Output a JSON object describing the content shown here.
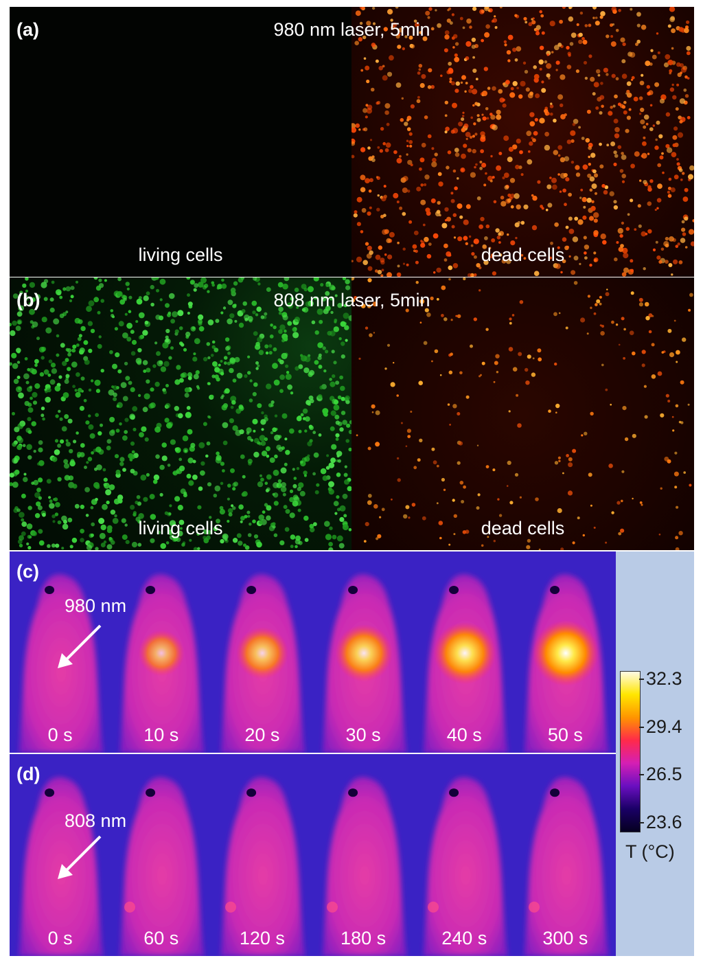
{
  "panel_a": {
    "label_open": "(",
    "label_letter": "a",
    "label_close": ")",
    "title": "980 nm laser, 5min",
    "left_caption": "living cells",
    "right_caption": "dead cells"
  },
  "panel_b": {
    "label_open": "(",
    "label_letter": "b",
    "label_close": ")",
    "title": "808 nm laser, 5min",
    "left_caption": "living cells",
    "right_caption": "dead cells"
  },
  "panel_c": {
    "label_open": "(",
    "label_letter": "c",
    "label_close": ")",
    "wavelength": "980 nm",
    "times": [
      "0 s",
      "10 s",
      "20 s",
      "30 s",
      "40 s",
      "50 s"
    ],
    "hotspot_intensity": [
      0,
      0.35,
      0.55,
      0.72,
      0.88,
      1.0
    ]
  },
  "panel_d": {
    "label_open": "(",
    "label_letter": "d",
    "label_close": ")",
    "wavelength": "808 nm",
    "times": [
      "0 s",
      "60 s",
      "120 s",
      "180 s",
      "240 s",
      "300 s"
    ]
  },
  "colorbar": {
    "ticks": [
      "32.3",
      "29.4",
      "26.5",
      "23.6"
    ],
    "unit_label": "T (°C)",
    "colors": [
      "#fffbe6",
      "#ffe600",
      "#ff9500",
      "#ff2a4a",
      "#d51fb4",
      "#6a0fc0",
      "#1a0066",
      "#050020"
    ]
  },
  "colors": {
    "thermal_background": "#3a22c4",
    "dead_stain": "#ff7a1a",
    "live_stain": "#2cc12c"
  }
}
